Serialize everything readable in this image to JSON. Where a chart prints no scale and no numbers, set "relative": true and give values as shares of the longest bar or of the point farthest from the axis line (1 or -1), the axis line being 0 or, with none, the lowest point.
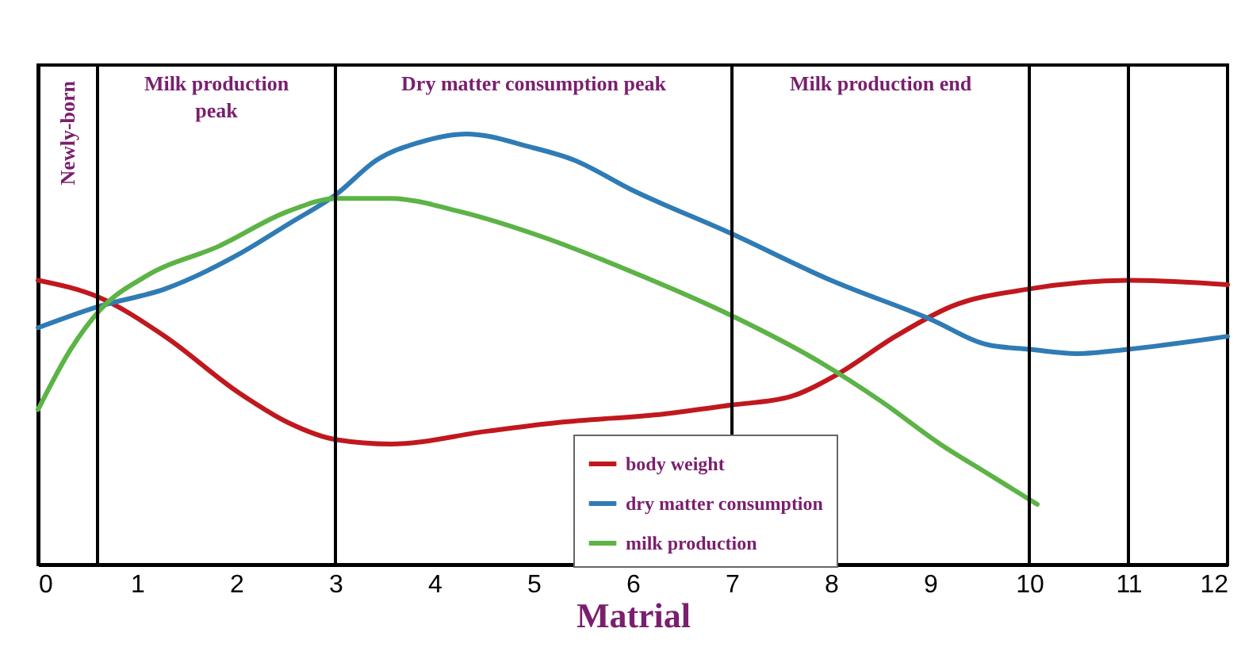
{
  "chart_data": {
    "type": "line",
    "relative": true,
    "xlabel": "Matrial",
    "xlim": [
      0,
      12
    ],
    "xticks": [
      0,
      1,
      2,
      3,
      4,
      5,
      6,
      7,
      8,
      9,
      10,
      11,
      12
    ],
    "legend": "bottom",
    "grid": false,
    "series": [
      {
        "name": "body weight",
        "color": "#c0181e",
        "x": [
          0,
          0.62,
          1.28,
          2.02,
          2.52,
          3.01,
          3.56,
          4.54,
          5.25,
          6.32,
          6.98,
          7.59,
          8.05,
          8.65,
          9.22,
          10,
          11,
          12
        ],
        "values": [
          0.66,
          0.62,
          0.53,
          0.4,
          0.33,
          0.29,
          0.28,
          0.31,
          0.33,
          0.35,
          0.37,
          0.39,
          0.44,
          0.53,
          0.6,
          0.64,
          0.66,
          0.65
        ]
      },
      {
        "name": "dry matter consumption",
        "color": "#2f7bb5",
        "x": [
          0,
          0.62,
          1.28,
          2.02,
          2.52,
          3.01,
          3.42,
          3.84,
          4.32,
          4.96,
          5.4,
          5.99,
          6.98,
          8,
          9,
          9.59,
          10,
          10.48,
          11,
          12
        ],
        "values": [
          0.55,
          0.6,
          0.64,
          0.72,
          0.79,
          0.86,
          0.94,
          0.98,
          1,
          0.97,
          0.94,
          0.87,
          0.77,
          0.66,
          0.57,
          0.51,
          0.5,
          0.49,
          0.5,
          0.53
        ]
      },
      {
        "name": "milk production",
        "color": "#5cb346",
        "x": [
          0,
          0.33,
          0.62,
          1.09,
          1.83,
          2.52,
          3.01,
          3.56,
          4.25,
          5.1,
          5.99,
          6.98,
          7.89,
          8.5,
          9.1,
          9.59,
          10.08
        ],
        "values": [
          0.36,
          0.5,
          0.59,
          0.67,
          0.74,
          0.82,
          0.85,
          0.85,
          0.82,
          0.76,
          0.68,
          0.58,
          0.47,
          0.38,
          0.28,
          0.21,
          0.14
        ]
      }
    ],
    "ref_lines": [
      {
        "axis": "x",
        "value": 0.6,
        "color": "#000000"
      },
      {
        "axis": "x",
        "value": 3,
        "color": "#000000"
      },
      {
        "axis": "x",
        "value": 7,
        "color": "#000000"
      },
      {
        "axis": "x",
        "value": 10,
        "color": "#000000"
      },
      {
        "axis": "x",
        "value": 11,
        "color": "#000000"
      }
    ],
    "annotations": [
      "Newly-born",
      "Milk production peak",
      "Dry matter consumption peak",
      "Milk production end"
    ]
  }
}
